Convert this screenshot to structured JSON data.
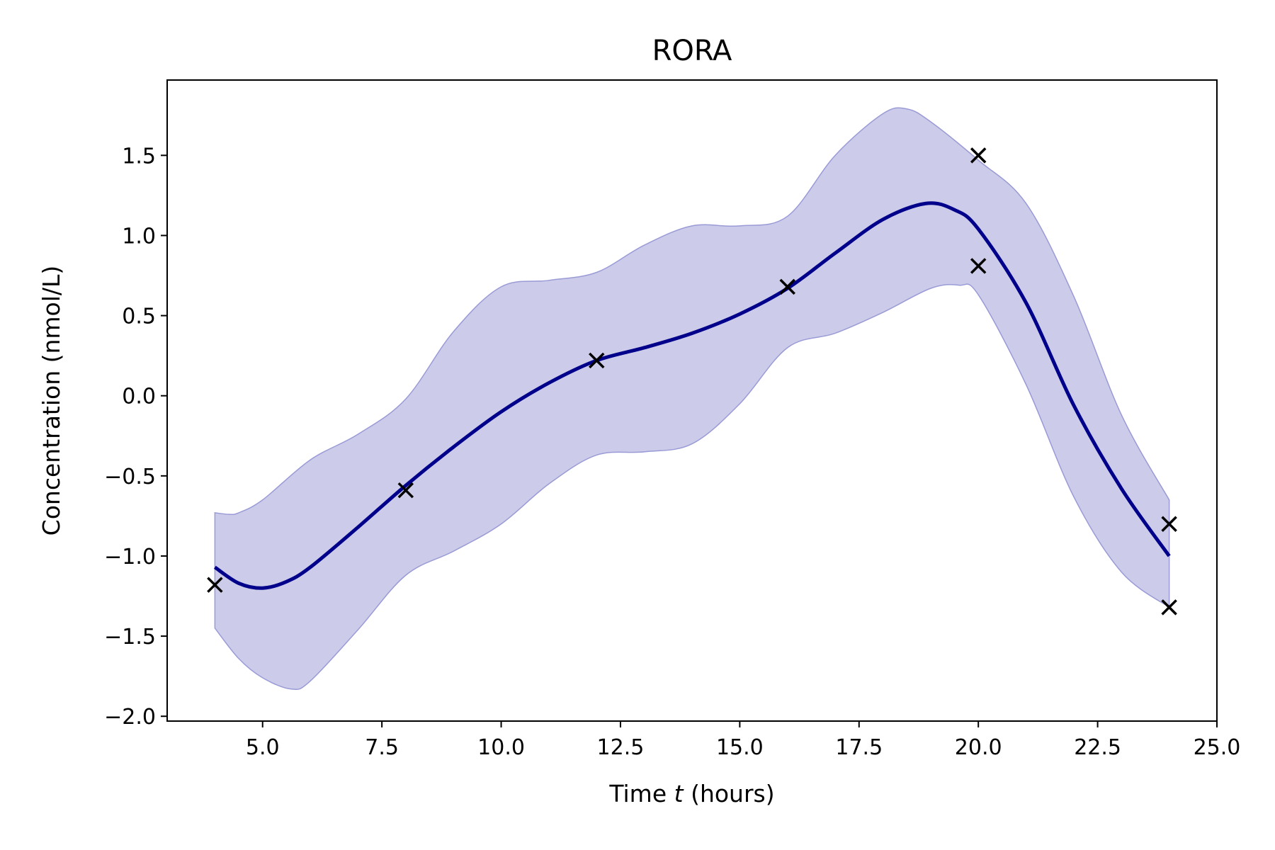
{
  "chart_data": {
    "type": "line",
    "title": "RORA",
    "xlabel_prefix": "Time ",
    "xlabel_var": "t",
    "xlabel_suffix": " (hours)",
    "ylabel": "Concentration (nmol/L)",
    "xlim": [
      3.0,
      25.0
    ],
    "ylim": [
      -2.03,
      1.97
    ],
    "grid": false,
    "x_ticks": [
      5.0,
      7.5,
      10.0,
      12.5,
      15.0,
      17.5,
      20.0,
      22.5,
      25.0
    ],
    "x_tick_labels": [
      "5.0",
      "7.5",
      "10.0",
      "12.5",
      "15.0",
      "17.5",
      "20.0",
      "22.5",
      "25.0"
    ],
    "y_ticks": [
      -2.0,
      -1.5,
      -1.0,
      -0.5,
      0.0,
      0.5,
      1.0,
      1.5
    ],
    "y_tick_labels": [
      "−2.0",
      "−1.5",
      "−1.0",
      "−0.5",
      "0.0",
      "0.5",
      "1.0",
      "1.5"
    ],
    "colors": {
      "mean_line": "#00008b",
      "band_fill": "#ccccea",
      "band_edge": "#9a9ad6",
      "markers": "#000000"
    },
    "mean_curve": {
      "x": [
        4.0,
        4.5,
        5.0,
        5.5,
        6.0,
        7.0,
        8.0,
        9.0,
        10.0,
        11.0,
        12.0,
        13.0,
        14.0,
        15.0,
        16.0,
        17.0,
        18.0,
        18.9,
        19.5,
        20.0,
        21.0,
        22.0,
        23.0,
        24.0
      ],
      "y": [
        -1.07,
        -1.17,
        -1.2,
        -1.16,
        -1.07,
        -0.82,
        -0.56,
        -0.32,
        -0.1,
        0.08,
        0.22,
        0.3,
        0.39,
        0.51,
        0.67,
        0.89,
        1.1,
        1.2,
        1.16,
        1.04,
        0.58,
        -0.06,
        -0.58,
        -1.0
      ]
    },
    "band_upper": {
      "x": [
        4.0,
        4.3,
        4.5,
        5.0,
        6.0,
        7.0,
        8.0,
        9.0,
        10.0,
        11.0,
        12.0,
        13.0,
        14.0,
        15.0,
        16.0,
        17.0,
        18.0,
        18.5,
        19.0,
        20.0,
        21.0,
        22.0,
        23.0,
        24.0
      ],
      "y": [
        -0.73,
        -0.74,
        -0.73,
        -0.65,
        -0.4,
        -0.24,
        -0.02,
        0.4,
        0.68,
        0.72,
        0.77,
        0.94,
        1.06,
        1.06,
        1.12,
        1.5,
        1.76,
        1.79,
        1.71,
        1.47,
        1.2,
        0.62,
        -0.12,
        -0.65
      ]
    },
    "band_lower": {
      "x": [
        4.0,
        4.5,
        5.0,
        5.6,
        6.0,
        7.0,
        8.0,
        9.0,
        10.0,
        11.0,
        12.0,
        13.0,
        14.0,
        15.0,
        16.0,
        17.0,
        18.0,
        19.0,
        19.6,
        20.0,
        21.0,
        22.0,
        23.0,
        24.0
      ],
      "y": [
        -1.45,
        -1.64,
        -1.76,
        -1.83,
        -1.78,
        -1.46,
        -1.12,
        -0.97,
        -0.8,
        -0.55,
        -0.37,
        -0.35,
        -0.3,
        -0.05,
        0.3,
        0.39,
        0.52,
        0.67,
        0.69,
        0.63,
        0.07,
        -0.63,
        -1.1,
        -1.32
      ]
    },
    "observations": {
      "x": [
        4.0,
        8.0,
        12.0,
        16.0,
        20.0,
        20.0,
        24.0,
        24.0
      ],
      "y": [
        -1.18,
        -0.59,
        0.22,
        0.68,
        1.5,
        0.81,
        -0.8,
        -1.32
      ]
    }
  }
}
